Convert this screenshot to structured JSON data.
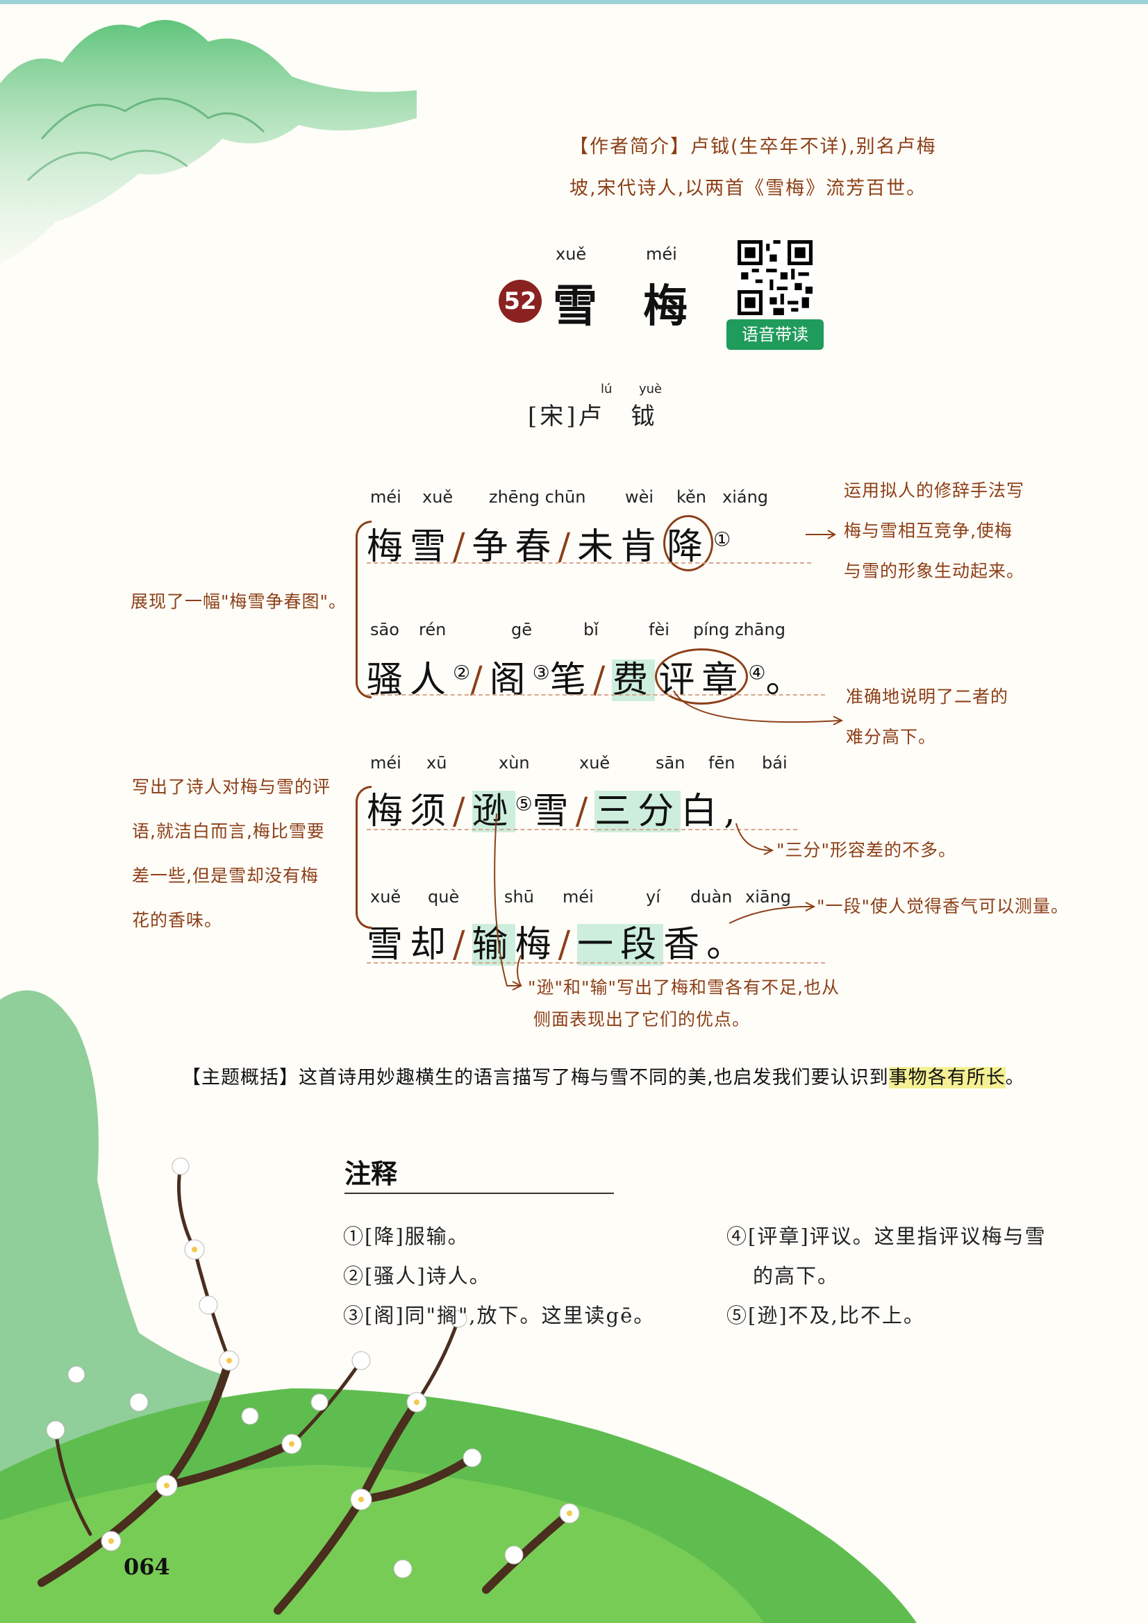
{
  "author_intro": {
    "line1": "【作者简介】卢钺(生卒年不详),别名卢梅",
    "line2": "坡,宋代诗人,以两首《雪梅》流芳百世。"
  },
  "title": {
    "number": "52",
    "char1": "雪",
    "char2": "梅",
    "pinyin1": "xuě",
    "pinyin2": "méi"
  },
  "qr_label": "语音带读",
  "byline": {
    "text": "[宋]卢　钺",
    "pinyin1": "lú",
    "pinyin2": "yuè"
  },
  "poem": {
    "line1": {
      "pinyin": [
        "méi",
        "xuě",
        "zhēng chūn",
        "wèi",
        "kěn",
        "xiáng"
      ],
      "seg1": "梅雪",
      "seg2": "争春",
      "seg3a": "未肯",
      "seg3b": "降",
      "note": "①"
    },
    "line2": {
      "pinyin": [
        "sāo",
        "rén",
        "gē",
        "bǐ",
        "fèi",
        "píng zhāng"
      ],
      "seg1": "骚人",
      "note2": "②",
      "seg2": "阁",
      "note3": "③",
      "seg3": "笔",
      "seg4": "费",
      "seg5": "评章",
      "note4": "④",
      "end": "。"
    },
    "line3": {
      "pinyin": [
        "méi",
        "xū",
        "xùn",
        "xuě",
        "sān",
        "fēn",
        "bái"
      ],
      "seg1": "梅须",
      "seg2": "逊",
      "note5": "⑤",
      "seg3": "雪",
      "seg4": "三分",
      "seg5": "白",
      "end": ","
    },
    "line4": {
      "pinyin": [
        "xuě",
        "què",
        "shū",
        "méi",
        "yí",
        "duàn",
        "xiāng"
      ],
      "seg1": "雪却",
      "seg2": "输",
      "seg3": "梅",
      "seg4": "一段",
      "seg5": "香",
      "end": "。"
    },
    "slash": "/"
  },
  "annotations": {
    "right1": [
      "运用拟人的修辞手法写",
      "梅与雪相互竞争,使梅",
      "与雪的形象生动起来。"
    ],
    "left1": "展现了一幅\"梅雪争春图\"。",
    "right2": [
      "准确地说明了二者的",
      "难分高下。"
    ],
    "left2": [
      "写出了诗人对梅与雪的评",
      "语,就洁白而言,梅比雪要",
      "差一些,但是雪却没有梅",
      "花的香味。"
    ],
    "right3": "\"三分\"形容差的不多。",
    "right4": "\"一段\"使人觉得香气可以测量。",
    "bottom": [
      "\"逊\"和\"输\"写出了梅和雪各有不足,也从",
      "侧面表现出了它们的优点。"
    ]
  },
  "theme": {
    "text": "【主题概括】这首诗用妙趣横生的语言描写了梅与雪不同的美,也启发我们要认识到",
    "highlight": "事物各有所长",
    "end": "。"
  },
  "notes": {
    "heading": "注释",
    "items": [
      "①[降]服输。",
      "②[骚人]诗人。",
      "③[阁]同\"搁\",放下。这里读gē。",
      "④[评章]评议。这里指评议梅与雪",
      "的高下。",
      "⑤[逊]不及,比不上。"
    ]
  },
  "page_number": "064",
  "colors": {
    "accent_brown": "#8c3f17",
    "title_badge": "#8b2222",
    "qr_label_bg": "#1f9b5c",
    "highlight_green": "#cdeedd",
    "highlight_yellow": "#f4f093"
  }
}
